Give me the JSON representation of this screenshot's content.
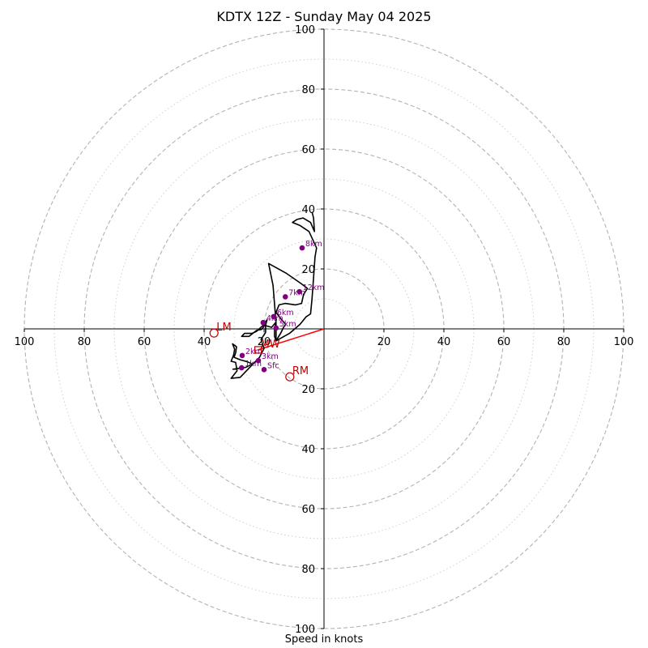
{
  "chart_data": {
    "type": "line",
    "title": "KDTX 12Z - Sunday May 04 2025",
    "xlabel": "Speed in knots",
    "ylabel": "",
    "xlim": [
      -100,
      100
    ],
    "ylim": [
      -100,
      100
    ],
    "rings_dashed": [
      20,
      40,
      60,
      80,
      100
    ],
    "rings_dotted": [
      10,
      30,
      50,
      70,
      90
    ],
    "x_ticks": [
      {
        "value": -100,
        "label": "100"
      },
      {
        "value": -80,
        "label": "80"
      },
      {
        "value": -60,
        "label": "60"
      },
      {
        "value": -40,
        "label": "40"
      },
      {
        "value": -20,
        "label": "20"
      },
      {
        "value": 20,
        "label": "20"
      },
      {
        "value": 40,
        "label": "40"
      },
      {
        "value": 60,
        "label": "60"
      },
      {
        "value": 80,
        "label": "80"
      },
      {
        "value": 100,
        "label": "100"
      }
    ],
    "y_ticks": [
      {
        "value": 100,
        "label": "100"
      },
      {
        "value": 80,
        "label": "80"
      },
      {
        "value": 60,
        "label": "60"
      },
      {
        "value": 40,
        "label": "40"
      },
      {
        "value": 20,
        "label": "20"
      },
      {
        "value": -20,
        "label": "20"
      },
      {
        "value": -40,
        "label": "40"
      },
      {
        "value": -60,
        "label": "60"
      },
      {
        "value": -80,
        "label": "80"
      },
      {
        "value": -100,
        "label": "100"
      }
    ],
    "series": [
      {
        "color": "#000000",
        "points": [
          [
            -30.5,
            -13.5
          ],
          [
            -26.0,
            -12.8
          ],
          [
            -24.0,
            -11.7
          ],
          [
            -25.5,
            -11.0
          ],
          [
            -28.0,
            -10.3
          ],
          [
            -30.0,
            -9.5
          ],
          [
            -29.5,
            -8.0
          ],
          [
            -29.2,
            -6.0
          ],
          [
            -30.5,
            -5.0
          ],
          [
            -29.8,
            -6.8
          ],
          [
            -30.2,
            -8.8
          ],
          [
            -31.0,
            -10.8
          ],
          [
            -29.5,
            -11.2
          ],
          [
            -29.0,
            -14.0
          ],
          [
            -31.0,
            -16.5
          ],
          [
            -28.0,
            -16.2
          ],
          [
            -21.5,
            -9.5
          ],
          [
            -20.0,
            -6.5
          ],
          [
            -21.0,
            -3.5
          ],
          [
            -19.5,
            -1.2
          ],
          [
            -19.5,
            1.2
          ],
          [
            -19.0,
            3.0
          ],
          [
            -20.5,
            1.0
          ],
          [
            -22.5,
            -0.8
          ],
          [
            -24.0,
            -1.5
          ],
          [
            -26.5,
            -1.5
          ],
          [
            -27.5,
            -2.5
          ],
          [
            -25.0,
            -2.5
          ],
          [
            -22.5,
            -0.5
          ],
          [
            -20.8,
            -0.2
          ],
          [
            -19.8,
            1.2
          ],
          [
            -17.5,
            0.5
          ],
          [
            -16.0,
            2.3
          ],
          [
            -16.5,
            0.0
          ],
          [
            -16.5,
            -2.5
          ],
          [
            -16.0,
            -4.0
          ],
          [
            -14.5,
            -1.5
          ],
          [
            -13.5,
            0.5
          ],
          [
            -12.8,
            1.5
          ],
          [
            -14.5,
            3.5
          ],
          [
            -16.0,
            5.5
          ],
          [
            -15.0,
            8.0
          ],
          [
            -13.0,
            8.5
          ],
          [
            -9.5,
            8.0
          ],
          [
            -7.5,
            8.5
          ],
          [
            -6.8,
            11.5
          ],
          [
            -5.5,
            13.5
          ],
          [
            -7.5,
            15.0
          ],
          [
            -12.5,
            18.5
          ],
          [
            -18.5,
            21.8
          ],
          [
            -17.0,
            14.5
          ],
          [
            -16.0,
            2.0
          ],
          [
            -16.0,
            -4.0
          ],
          [
            -11.5,
            -1.5
          ],
          [
            -8.0,
            1.5
          ],
          [
            -6.0,
            4.0
          ],
          [
            -4.5,
            5.0
          ],
          [
            -4.0,
            10.0
          ],
          [
            -3.5,
            17.0
          ],
          [
            -3.0,
            24.0
          ],
          [
            -2.5,
            27.0
          ],
          [
            -5.0,
            32.5
          ],
          [
            -8.0,
            34.5
          ],
          [
            -10.5,
            35.5
          ],
          [
            -9.0,
            36.5
          ],
          [
            -7.0,
            37.0
          ],
          [
            -4.5,
            35.5
          ],
          [
            -3.2,
            32.5
          ],
          [
            -3.5,
            37.0
          ],
          [
            -4.0,
            39.0
          ]
        ]
      }
    ],
    "height_markers": [
      {
        "label": "Sfc",
        "x": -20.0,
        "y": -13.6
      },
      {
        "label": "1km",
        "x": -27.5,
        "y": -13.0
      },
      {
        "label": "2km",
        "x": -27.3,
        "y": -8.9
      },
      {
        "label": "3km",
        "x": -21.9,
        "y": -10.6
      },
      {
        "label": "4km",
        "x": -20.3,
        "y": 2.1
      },
      {
        "label": "5km",
        "x": -16.0,
        "y": 0.3
      },
      {
        "label": "6km",
        "x": -16.8,
        "y": 4.1
      },
      {
        "label": "7km",
        "x": -12.9,
        "y": 10.7
      },
      {
        "label": "8km",
        "x": -7.3,
        "y": 27.0
      },
      {
        "label": "12km",
        "x": -8.2,
        "y": 12.4
      }
    ],
    "storm_motion": [
      {
        "label": "RM",
        "x": -11.4,
        "y": -16.0
      },
      {
        "label": "LM",
        "x": -36.7,
        "y": -1.4
      },
      {
        "label": "MW",
        "x": -22.0,
        "y": -7.0
      }
    ],
    "shear_vector": {
      "from": [
        0,
        0
      ],
      "to": [
        -22.0,
        -7.0
      ]
    },
    "colors": {
      "hodograph": "#000000",
      "markers": "#800080",
      "storm_motion": "#c00000",
      "shear": "#ff0000",
      "ring": "#b3b3b3"
    }
  }
}
